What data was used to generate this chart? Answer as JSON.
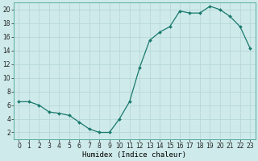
{
  "x_points": [
    0,
    1,
    2,
    3,
    4,
    5,
    6,
    7,
    8,
    9,
    10,
    11,
    12,
    13,
    14,
    15,
    16,
    17,
    18,
    19,
    20,
    21,
    22,
    23
  ],
  "y_points": [
    6.5,
    6.5,
    6.0,
    5.0,
    4.8,
    4.5,
    3.5,
    2.5,
    2.0,
    2.0,
    4.0,
    6.5,
    11.5,
    15.5,
    16.7,
    17.5,
    19.8,
    19.5,
    19.5,
    20.5,
    20.0,
    19.0,
    17.5,
    14.3
  ],
  "line_color": "#1a7a6e",
  "marker_color": "#1a7a6e",
  "bg_color": "#ceeaea",
  "grid_major_color": "#b8d8d8",
  "grid_minor_color": "#d0e8e8",
  "xlabel": "Humidex (Indice chaleur)",
  "yticks": [
    2,
    4,
    6,
    8,
    10,
    12,
    14,
    16,
    18,
    20
  ],
  "xticks": [
    0,
    1,
    2,
    3,
    4,
    5,
    6,
    7,
    8,
    9,
    10,
    11,
    12,
    13,
    14,
    15,
    16,
    17,
    18,
    19,
    20,
    21,
    22,
    23
  ],
  "ylim_min": 1,
  "ylim_max": 21,
  "xlim_min": -0.5,
  "xlim_max": 23.5,
  "tick_fontsize": 5.5,
  "xlabel_fontsize": 6.5,
  "line_width": 0.9,
  "marker_size": 2.0
}
